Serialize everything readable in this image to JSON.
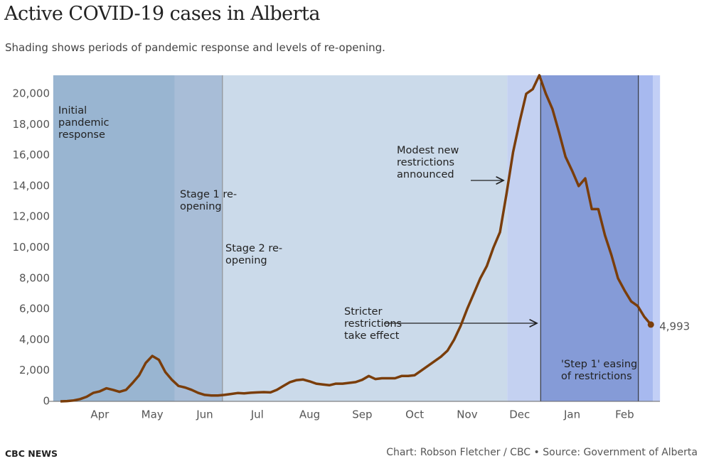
{
  "chart_data": {
    "type": "line",
    "title": "Active COVID-19 cases in Alberta",
    "subtitle": "Shading shows periods of pandemic response and levels of re-opening.",
    "categories": [
      null,
      null,
      null,
      null,
      null,
      null,
      "Apr",
      null,
      null,
      null,
      null,
      null,
      null,
      null,
      "May",
      null,
      null,
      null,
      null,
      null,
      null,
      null,
      "Jun",
      null,
      null,
      null,
      null,
      null,
      null,
      null,
      "Jul",
      null,
      null,
      null,
      null,
      null,
      null,
      null,
      "Aug",
      null,
      null,
      null,
      null,
      null,
      null,
      null,
      "Sep",
      null,
      null,
      null,
      null,
      null,
      null,
      null,
      "Oct",
      null,
      null,
      null,
      null,
      null,
      null,
      null,
      "Nov",
      null,
      null,
      null,
      null,
      null,
      null,
      null,
      "Dec",
      null,
      null,
      null,
      null,
      null,
      null,
      null,
      "Jan",
      null,
      null,
      null,
      null,
      null,
      null,
      null,
      "Feb",
      null,
      null,
      null,
      null
    ],
    "series": [
      {
        "color": "#7a3d0a",
        "values": [
          0,
          20,
          60,
          150,
          300,
          550,
          650,
          850,
          750,
          620,
          750,
          1200,
          1700,
          2500,
          2950,
          2700,
          1900,
          1400,
          1000,
          900,
          750,
          550,
          420,
          380,
          380,
          420,
          480,
          540,
          520,
          560,
          580,
          600,
          580,
          750,
          1000,
          1250,
          1380,
          1420,
          1300,
          1150,
          1100,
          1050,
          1150,
          1150,
          1200,
          1250,
          1400,
          1650,
          1450,
          1500,
          1500,
          1500,
          1650,
          1650,
          1700,
          2000,
          2300,
          2600,
          2900,
          3300,
          4000,
          4900,
          6000,
          7000,
          8000,
          8800,
          10000,
          11000,
          13500,
          16200,
          18200,
          20000,
          20300,
          21200,
          20000,
          19000,
          17500,
          15900,
          15000,
          14000,
          14500,
          12500,
          12500,
          10800,
          9500,
          8000,
          7200,
          6500,
          6200,
          5500,
          4993
        ],
        "end_label": "4,993"
      }
    ],
    "ylim": [
      0,
      21200
    ],
    "yticks": [
      0,
      {
        "value": 2000,
        "label": "2,000"
      },
      {
        "value": 4000,
        "label": "4,000"
      },
      {
        "value": 6000,
        "label": "6,000"
      },
      {
        "value": 8000,
        "label": "8,000"
      },
      {
        "value": 10000,
        "label": "10,000"
      },
      {
        "value": 12000,
        "label": "12,000"
      },
      {
        "value": 14000,
        "label": "14,000"
      },
      {
        "value": 16000,
        "label": "16,000"
      },
      {
        "value": 18000,
        "label": "18,000"
      },
      {
        "value": 20000,
        "label": "20,000"
      }
    ],
    "grid": false,
    "periods": [
      {
        "label": "Initial pandemic response",
        "start": -1.1,
        "end": 17.4,
        "color": "#99b5d1"
      },
      {
        "label": "Stage 1 re-opening",
        "start": 17.4,
        "end": 24.7,
        "color": "#a8bdd7"
      },
      {
        "label": "Stage 2 re-opening",
        "start": 24.7,
        "end": 68.1,
        "color": "#cbdaea",
        "edge_color": "#888888"
      },
      {
        "start": 68.1,
        "end": 73.2,
        "color": "#c4d1f1"
      },
      {
        "label": "'Step 1' easing of restrictions",
        "start": 73.2,
        "end": 88.1,
        "color": "#859bd7",
        "edge_color": "#222222"
      },
      {
        "start": 88.1,
        "end": 90.3,
        "color": "#a7b9ef",
        "edge_color": "#222222"
      },
      {
        "start": 90.3,
        "end": 91.4,
        "color": "#c2cff6"
      }
    ],
    "annotations": [
      "Modest new restrictions announced",
      "Stricter restrictions take effect"
    ],
    "source": "Chart: Robson Fletcher / CBC • Source: Government of Alberta",
    "brand": "CBC NEWS"
  }
}
